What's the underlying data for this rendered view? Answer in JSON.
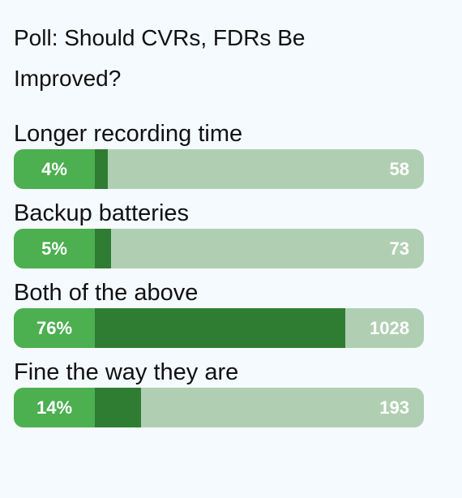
{
  "poll": {
    "title": "Poll: Should CVRs, FDRs Be Improved?",
    "options": [
      {
        "label": "Longer recording time",
        "percent_label": "4%",
        "percent": 4,
        "count": "58"
      },
      {
        "label": "Backup batteries",
        "percent_label": "5%",
        "percent": 5,
        "count": "73"
      },
      {
        "label": "Both of the above",
        "percent_label": "76%",
        "percent": 76,
        "count": "1028"
      },
      {
        "label": "Fine the way they are",
        "percent_label": "14%",
        "percent": 14,
        "count": "193"
      }
    ]
  },
  "colors": {
    "background": "#f5fafe",
    "bar_track": "#b0cfb2",
    "percent_box": "#4caf50",
    "bar_fill": "#2e7d32",
    "text": "#111111",
    "bar_text": "#ffffff"
  }
}
